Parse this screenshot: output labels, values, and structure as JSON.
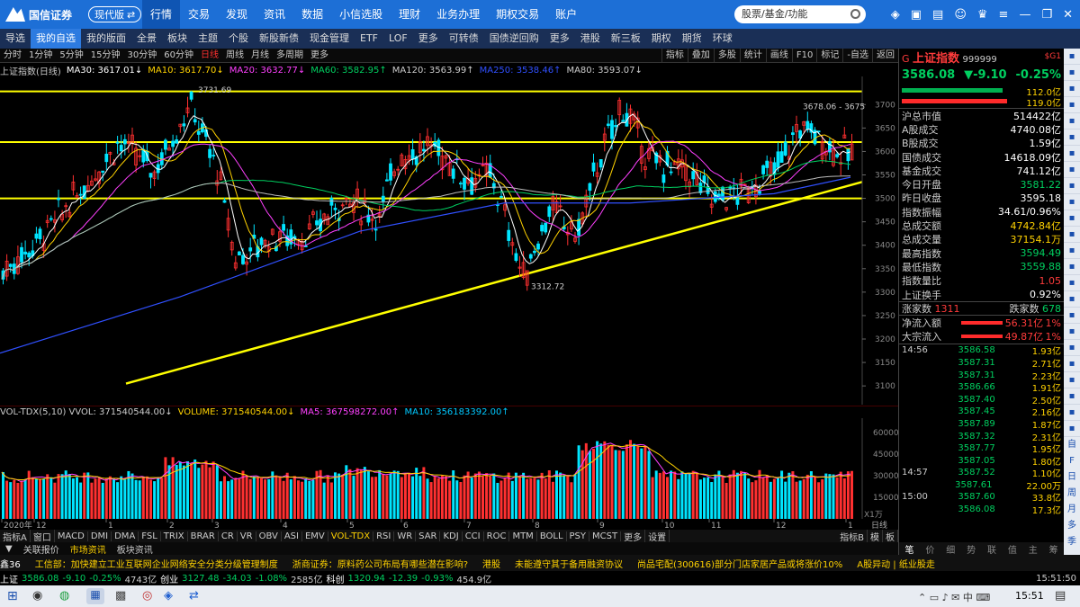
{
  "topbar": {
    "brand": "国信证券",
    "edition": "现代版",
    "nav": [
      "行情",
      "交易",
      "发现",
      "资讯",
      "数据",
      "小信选股",
      "理财",
      "业务办理",
      "期权交易",
      "账户"
    ],
    "active_nav": "行情",
    "search_placeholder": "股票/基金/功能"
  },
  "toolbar": {
    "items": [
      "导选",
      "我的自选",
      "我的版面",
      "全景",
      "板块",
      "主题",
      "个股",
      "新股新债",
      "现金管理",
      "ETF",
      "LOF",
      "更多",
      "可转债",
      "国债逆回购",
      "更多",
      "港股",
      "新三板",
      "期权",
      "期货",
      "环球"
    ],
    "selected": "我的自选"
  },
  "periods": {
    "items": [
      "分时",
      "1分钟",
      "5分钟",
      "15分钟",
      "30分钟",
      "60分钟",
      "日线",
      "周线",
      "月线",
      "多周期",
      "更多"
    ],
    "selected": "日线",
    "tools": [
      "指标",
      "叠加",
      "多股",
      "统计",
      "画线",
      "F10",
      "标记",
      "-自选",
      "返回"
    ]
  },
  "ma_legend": [
    {
      "text": "上证指数(日线)",
      "color": "#cccccc"
    },
    {
      "text": "MA30: 3617.01↓",
      "color": "#ffffff"
    },
    {
      "text": "MA10: 3617.70↓",
      "color": "#ffd200"
    },
    {
      "text": "MA20: 3632.77↓",
      "color": "#ff40ff"
    },
    {
      "text": "MA60: 3582.95↑",
      "color": "#00d060"
    },
    {
      "text": "MA120: 3563.99↑",
      "color": "#cccccc"
    },
    {
      "text": "MA250: 3538.46↑",
      "color": "#3050ff"
    },
    {
      "text": "MA80: 3593.07↓",
      "color": "#cccccc"
    }
  ],
  "price_axis": [
    "3700",
    "3650",
    "3600",
    "3550",
    "3500",
    "3450",
    "3400",
    "3350",
    "3300",
    "3250",
    "3200",
    "3150",
    "3100"
  ],
  "annotations": {
    "high": "3731.69",
    "low": "3312.72",
    "range": "3678.06 - 3675"
  },
  "vol_legend": [
    {
      "text": "VOL-TDX(5,10)  VVOL: 371540544.00↓",
      "color": "#cccccc"
    },
    {
      "text": "VOLUME: 371540544.00↓",
      "color": "#ffd200"
    },
    {
      "text": "MA5: 367598272.00↑",
      "color": "#ff40ff"
    },
    {
      "text": "MA10: 356183392.00↑",
      "color": "#00c8ff"
    }
  ],
  "vol_axis": [
    "60000",
    "45000",
    "30000",
    "15000"
  ],
  "vol_unit": "X1万",
  "x_labels": [
    "2020年",
    "12",
    "1",
    "2",
    "3",
    "4",
    "5",
    "6",
    "7",
    "8",
    "9",
    "10",
    "11",
    "12",
    "1"
  ],
  "x_right": "日线",
  "indicators": {
    "items": [
      "指标A",
      "窗口",
      "MACD",
      "DMI",
      "DMA",
      "FSL",
      "TRIX",
      "BRAR",
      "CR",
      "VR",
      "OBV",
      "ASI",
      "EMV",
      "VOL-TDX",
      "RSI",
      "WR",
      "SAR",
      "KDJ",
      "CCI",
      "ROC",
      "MTM",
      "BOLL",
      "PSY",
      "MCST",
      "更多",
      "设置"
    ],
    "selected": "VOL-TDX",
    "right": [
      "指标B",
      "模",
      "板"
    ]
  },
  "subtabs": [
    "关联报价",
    "市场资讯",
    "板块资讯"
  ],
  "news": [
    "鑫36",
    "工信部：加快建立工业互联网企业网络安全分类分级管理制度",
    "浙商证券：原料药公司布局有哪些潜在影响?",
    "港股",
    "未能遵守其于备用融资协议",
    "尚品宅配(300616)部分门店家居产品或将涨价10%",
    "A股异动 | 纸业股走"
  ],
  "ticker": [
    {
      "t": "上证",
      "c": "#ffffff"
    },
    {
      "t": "3586.08",
      "c": "#00d060"
    },
    {
      "t": "-9.10",
      "c": "#00d060"
    },
    {
      "t": "-0.25%",
      "c": "#00d060"
    },
    {
      "t": "4743亿",
      "c": "#cccccc"
    },
    {
      "t": "创业",
      "c": "#ffffff"
    },
    {
      "t": "3127.48",
      "c": "#00d060"
    },
    {
      "t": "-34.03",
      "c": "#00d060"
    },
    {
      "t": "-1.08%",
      "c": "#00d060"
    },
    {
      "t": "2585亿",
      "c": "#cccccc"
    },
    {
      "t": "科创",
      "c": "#ffffff"
    },
    {
      "t": "1320.94",
      "c": "#00d060"
    },
    {
      "t": "-12.39",
      "c": "#00d060"
    },
    {
      "t": "-0.93%",
      "c": "#00d060"
    },
    {
      "t": "454.9亿",
      "c": "#cccccc"
    }
  ],
  "ticker_time": "15:51:50",
  "quote": {
    "code_prefix": "G",
    "name": "上证指数",
    "code": "999999",
    "badge": "$G1",
    "price": "3586.08",
    "change": "▼-9.10",
    "pct": "-0.25%",
    "bar1": "112.0亿",
    "bar2": "119.0亿"
  },
  "stats": [
    {
      "k": "沪总市值",
      "v": "514422亿",
      "c": "#ffffff"
    },
    {
      "k": "A股成交",
      "v": "4740.08亿",
      "c": "#ffffff"
    },
    {
      "k": "B股成交",
      "v": "1.59亿",
      "c": "#ffffff"
    },
    {
      "k": "国债成交",
      "v": "14618.09亿",
      "c": "#ffffff"
    },
    {
      "k": "基金成交",
      "v": "741.12亿",
      "c": "#ffffff"
    },
    {
      "k": "今日开盘",
      "v": "3581.22",
      "c": "#00d060"
    },
    {
      "k": "昨日收盘",
      "v": "3595.18",
      "c": "#ffffff"
    },
    {
      "k": "指数振幅",
      "v": "34.61/0.96%",
      "c": "#ffffff"
    },
    {
      "k": "总成交额",
      "v": "4742.84亿",
      "c": "#ffd200"
    },
    {
      "k": "总成交量",
      "v": "37154.1万",
      "c": "#ffd200"
    },
    {
      "k": "最高指数",
      "v": "3594.49",
      "c": "#00d060"
    },
    {
      "k": "最低指数",
      "v": "3559.88",
      "c": "#00d060"
    },
    {
      "k": "指数量比",
      "v": "1.05",
      "c": "#ff3b3b"
    },
    {
      "k": "上证换手",
      "v": "0.92%",
      "c": "#ffffff"
    }
  ],
  "updown": {
    "up_label": "涨家数",
    "up": "1311",
    "down_label": "跌家数",
    "down": "678"
  },
  "flows": [
    {
      "k": "净流入额",
      "v": "56.31亿",
      "p": "1%"
    },
    {
      "k": "大宗流入",
      "v": "49.87亿",
      "p": "1%"
    }
  ],
  "ticks": [
    {
      "t": "14:56",
      "p": "3586.58",
      "v": "1.93亿"
    },
    {
      "t": "",
      "p": "3587.31",
      "v": "2.71亿"
    },
    {
      "t": "",
      "p": "3587.31",
      "v": "2.23亿"
    },
    {
      "t": "",
      "p": "3586.66",
      "v": "1.91亿"
    },
    {
      "t": "",
      "p": "3587.40",
      "v": "2.50亿"
    },
    {
      "t": "",
      "p": "3587.45",
      "v": "2.16亿"
    },
    {
      "t": "",
      "p": "3587.89",
      "v": "1.87亿"
    },
    {
      "t": "",
      "p": "3587.32",
      "v": "2.31亿"
    },
    {
      "t": "",
      "p": "3587.77",
      "v": "1.95亿"
    },
    {
      "t": "",
      "p": "3587.05",
      "v": "1.80亿"
    },
    {
      "t": "14:57",
      "p": "3587.52",
      "v": "1.10亿"
    },
    {
      "t": "",
      "p": "3587.61",
      "v": "22.00万"
    },
    {
      "t": "15:00",
      "p": "3587.60",
      "v": "33.8亿"
    },
    {
      "t": "",
      "p": "3586.08",
      "v": "17.3亿"
    }
  ],
  "rtabs": [
    "笔",
    "价",
    "细",
    "势",
    "联",
    "值",
    "主",
    "筹"
  ],
  "vtools": [
    "自",
    "F",
    "日",
    "周",
    "月",
    "多",
    "季"
  ],
  "taskbar": {
    "time": "15:51"
  }
}
